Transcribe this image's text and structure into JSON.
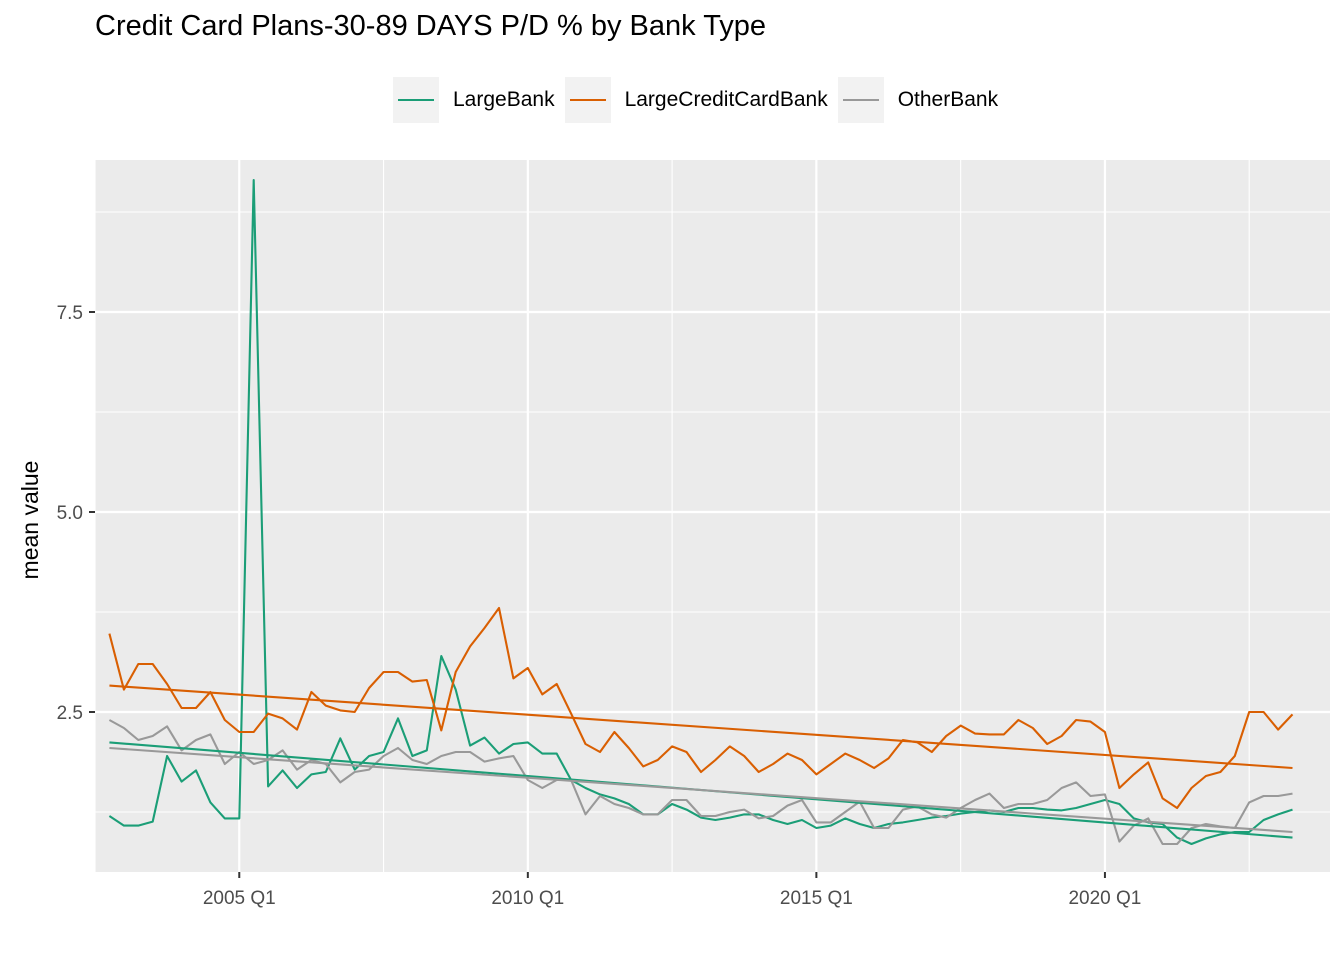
{
  "chart_data": {
    "type": "line",
    "title": "Credit Card Plans-30-89 DAYS P/D % by Bank Type",
    "xlabel": "",
    "ylabel": "mean value",
    "x_tick_labels": [
      "2005 Q1",
      "2010 Q1",
      "2015 Q1",
      "2020 Q1"
    ],
    "y_tick_labels": [
      "2.5",
      "5.0",
      "7.5"
    ],
    "xlim": [
      2002.5,
      2023.9
    ],
    "ylim": [
      0.5,
      9.4
    ],
    "grid": true,
    "legend_position": "top",
    "x": [
      2002.75,
      2003.0,
      2003.25,
      2003.5,
      2003.75,
      2004.0,
      2004.25,
      2004.5,
      2004.75,
      2005.0,
      2005.25,
      2005.5,
      2005.75,
      2006.0,
      2006.25,
      2006.5,
      2006.75,
      2007.0,
      2007.25,
      2007.5,
      2007.75,
      2008.0,
      2008.25,
      2008.5,
      2008.75,
      2009.0,
      2009.25,
      2009.5,
      2009.75,
      2010.0,
      2010.25,
      2010.5,
      2010.75,
      2011.0,
      2011.25,
      2011.5,
      2011.75,
      2012.0,
      2012.25,
      2012.5,
      2012.75,
      2013.0,
      2013.25,
      2013.5,
      2013.75,
      2014.0,
      2014.25,
      2014.5,
      2014.75,
      2015.0,
      2015.25,
      2015.5,
      2015.75,
      2016.0,
      2016.25,
      2016.5,
      2016.75,
      2017.0,
      2017.25,
      2017.5,
      2017.75,
      2018.0,
      2018.25,
      2018.5,
      2018.75,
      2019.0,
      2019.25,
      2019.5,
      2019.75,
      2020.0,
      2020.25,
      2020.5,
      2020.75,
      2021.0,
      2021.25,
      2021.5,
      2021.75,
      2022.0,
      2022.25,
      2022.5,
      2022.75,
      2023.0,
      2023.25
    ],
    "series": [
      {
        "name": "LargeBank",
        "color": "#1b9e77",
        "values": [
          1.2,
          1.08,
          1.08,
          1.13,
          1.95,
          1.63,
          1.77,
          1.37,
          1.17,
          1.17,
          9.15,
          1.57,
          1.77,
          1.55,
          1.72,
          1.75,
          2.17,
          1.78,
          1.95,
          2.0,
          2.42,
          1.95,
          2.02,
          3.2,
          2.78,
          2.08,
          2.18,
          1.98,
          2.1,
          2.12,
          1.98,
          1.98,
          1.65,
          1.55,
          1.47,
          1.42,
          1.35,
          1.22,
          1.22,
          1.35,
          1.28,
          1.18,
          1.15,
          1.18,
          1.22,
          1.22,
          1.15,
          1.1,
          1.15,
          1.05,
          1.08,
          1.17,
          1.1,
          1.05,
          1.1,
          1.12,
          1.15,
          1.18,
          1.2,
          1.23,
          1.25,
          1.27,
          1.25,
          1.3,
          1.3,
          1.28,
          1.27,
          1.3,
          1.35,
          1.4,
          1.35,
          1.17,
          1.12,
          1.1,
          0.93,
          0.85,
          0.92,
          0.97,
          1.0,
          1.0,
          1.15,
          1.22,
          1.28
        ]
      },
      {
        "name": "LargeCreditCardBank",
        "color": "#d95f02",
        "values": [
          3.48,
          2.78,
          3.1,
          3.1,
          2.85,
          2.55,
          2.55,
          2.75,
          2.4,
          2.25,
          2.25,
          2.48,
          2.42,
          2.28,
          2.75,
          2.58,
          2.52,
          2.5,
          2.8,
          3.0,
          3.0,
          2.88,
          2.9,
          2.27,
          3.0,
          3.32,
          3.55,
          3.8,
          2.92,
          3.05,
          2.72,
          2.85,
          2.48,
          2.1,
          2.0,
          2.25,
          2.05,
          1.82,
          1.9,
          2.07,
          2.0,
          1.75,
          1.9,
          2.07,
          1.95,
          1.75,
          1.85,
          1.98,
          1.9,
          1.72,
          1.85,
          1.98,
          1.9,
          1.8,
          1.92,
          2.15,
          2.12,
          2.0,
          2.2,
          2.33,
          2.23,
          2.22,
          2.22,
          2.4,
          2.3,
          2.1,
          2.2,
          2.4,
          2.38,
          2.25,
          1.55,
          1.72,
          1.87,
          1.42,
          1.3,
          1.55,
          1.7,
          1.75,
          1.95,
          2.5,
          2.5,
          2.28,
          2.47
        ]
      },
      {
        "name": "OtherBank",
        "color": "#999999",
        "values": [
          2.4,
          2.3,
          2.15,
          2.2,
          2.32,
          2.02,
          2.15,
          2.22,
          1.85,
          2.0,
          1.85,
          1.9,
          2.02,
          1.78,
          1.9,
          1.85,
          1.62,
          1.75,
          1.78,
          1.95,
          2.05,
          1.9,
          1.85,
          1.95,
          2.0,
          2.0,
          1.88,
          1.92,
          1.95,
          1.65,
          1.55,
          1.65,
          1.65,
          1.22,
          1.45,
          1.35,
          1.3,
          1.22,
          1.22,
          1.4,
          1.4,
          1.2,
          1.2,
          1.25,
          1.28,
          1.17,
          1.2,
          1.33,
          1.4,
          1.12,
          1.12,
          1.25,
          1.38,
          1.05,
          1.05,
          1.28,
          1.32,
          1.22,
          1.18,
          1.3,
          1.4,
          1.48,
          1.3,
          1.35,
          1.35,
          1.4,
          1.55,
          1.62,
          1.45,
          1.47,
          0.88,
          1.08,
          1.17,
          0.85,
          0.85,
          1.05,
          1.1,
          1.07,
          1.05,
          1.37,
          1.45,
          1.45,
          1.48
        ]
      }
    ],
    "trend_lines": [
      {
        "name": "LargeBank",
        "start": 2.12,
        "end": 0.93
      },
      {
        "name": "LargeCreditCardBank",
        "start": 2.83,
        "end": 1.8
      },
      {
        "name": "OtherBank",
        "start": 2.05,
        "end": 1.0
      }
    ]
  }
}
